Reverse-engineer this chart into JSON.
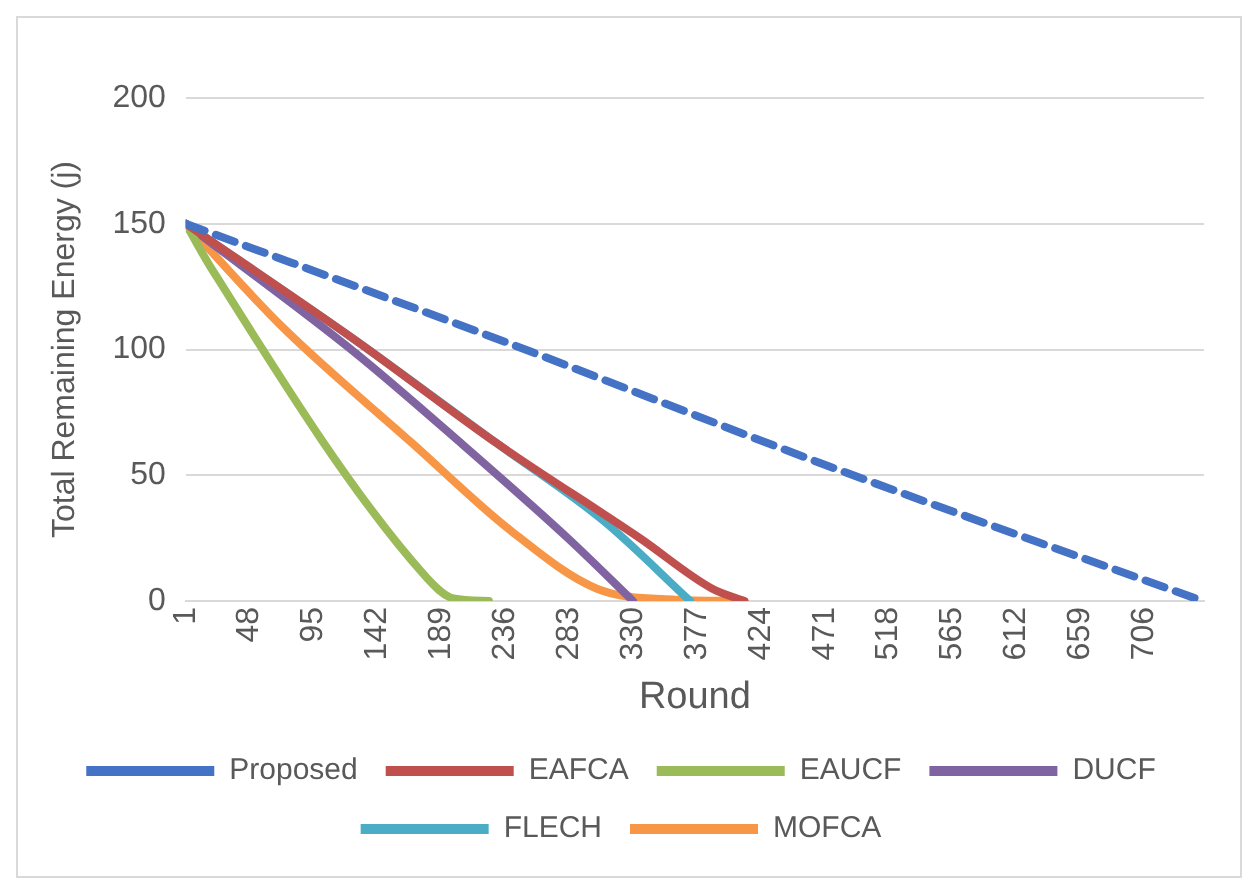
{
  "chart_data": {
    "type": "line",
    "xlabel": "Round",
    "ylabel": "Total Remaining Energy (j)",
    "xlim": [
      1,
      750
    ],
    "xticks": [
      1,
      48,
      95,
      142,
      189,
      236,
      283,
      330,
      377,
      424,
      471,
      518,
      565,
      612,
      659,
      706
    ],
    "ylim": [
      0,
      200
    ],
    "yticks": [
      0,
      50,
      100,
      150,
      200
    ],
    "grid": "y",
    "legend": "bottom",
    "marker": "none",
    "series": [
      {
        "name": "Proposed",
        "color": "#4472c4",
        "line_style": "dashed",
        "x": [
          1,
          236,
          472,
          749
        ],
        "values": [
          150,
          103,
          54,
          0
        ]
      },
      {
        "name": "EAFCA",
        "color": "#c0504d",
        "x": [
          1,
          125,
          229,
          335,
          388,
          412
        ],
        "values": [
          150,
          104,
          63,
          25,
          5,
          0
        ]
      },
      {
        "name": "EAUCF",
        "color": "#9bbb59",
        "x": [
          1,
          19,
          177,
          198,
          224
        ],
        "values": [
          150,
          133,
          10,
          1,
          0
        ]
      },
      {
        "name": "DUCF",
        "color": "#8064a2",
        "x": [
          1,
          125,
          203,
          282,
          330
        ],
        "values": [
          150,
          99,
          63,
          25,
          0
        ]
      },
      {
        "name": "FLECH",
        "color": "#4bacc6",
        "x": [
          1,
          125,
          229,
          308,
          372
        ],
        "values": [
          150,
          104,
          63,
          32,
          0
        ]
      },
      {
        "name": "MOFCA",
        "color": "#f79646",
        "x": [
          1,
          72,
          167,
          240,
          303,
          361,
          407
        ],
        "values": [
          150,
          109,
          63,
          28,
          5,
          0.5,
          0
        ]
      }
    ]
  }
}
